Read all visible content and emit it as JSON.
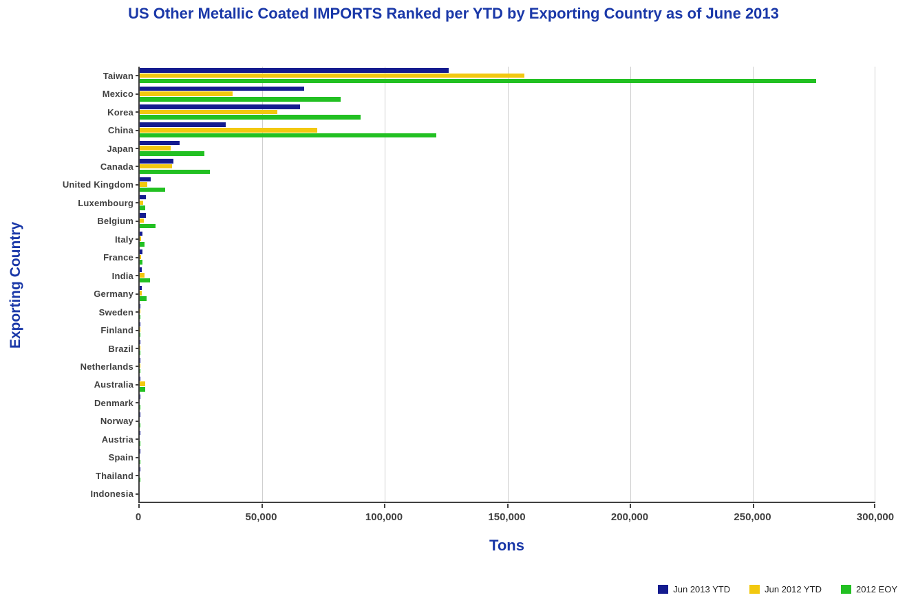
{
  "chart_data": {
    "type": "bar",
    "orientation": "horizontal",
    "title": "US Other Metallic Coated IMPORTS Ranked per YTD by Exporting Country as of June 2013",
    "xlabel": "Tons",
    "ylabel": "Exporting Country",
    "xlim": [
      0,
      300000
    ],
    "grid": true,
    "legend_position": "bottom-right",
    "x_ticks": [
      0,
      50000,
      100000,
      150000,
      200000,
      250000,
      300000
    ],
    "x_tick_labels": [
      "0",
      "50,000",
      "100,000",
      "150,000",
      "200,000",
      "250,000",
      "300,000"
    ],
    "categories": [
      "Taiwan",
      "Mexico",
      "Korea",
      "China",
      "Japan",
      "Canada",
      "United Kingdom",
      "Luxembourg",
      "Belgium",
      "Italy",
      "France",
      "India",
      "Germany",
      "Sweden",
      "Finland",
      "Brazil",
      "Netherlands",
      "Australia",
      "Denmark",
      "Norway",
      "Austria",
      "Spain",
      "Thailand",
      "Indonesia"
    ],
    "series": [
      {
        "name": "Jun 2013 YTD",
        "color": "#141B8F",
        "values": [
          126000,
          67000,
          65500,
          35000,
          16300,
          13700,
          4600,
          2500,
          2400,
          1150,
          1100,
          800,
          750,
          300,
          250,
          200,
          150,
          120,
          100,
          80,
          60,
          50,
          30,
          20
        ]
      },
      {
        "name": "Jun 2012 YTD",
        "color": "#F2C80F",
        "values": [
          157000,
          38000,
          56000,
          72500,
          12600,
          13200,
          3000,
          1400,
          1800,
          600,
          500,
          2000,
          900,
          100,
          100,
          50,
          80,
          2200,
          0,
          0,
          0,
          0,
          0,
          0
        ]
      },
      {
        "name": "2012 EOY",
        "color": "#22C022",
        "values": [
          276000,
          82000,
          90000,
          121000,
          26500,
          28600,
          10400,
          2300,
          6500,
          2000,
          1100,
          4300,
          2900,
          300,
          200,
          150,
          120,
          2200,
          100,
          80,
          60,
          50,
          30,
          20
        ]
      }
    ]
  },
  "colors": {
    "title": "#1A38A8",
    "axis_title": "#1A38A8",
    "tick_label": "#404040",
    "gridline": "#CFCFCF",
    "axis_line": "#404040",
    "background": "#FFFFFF"
  }
}
